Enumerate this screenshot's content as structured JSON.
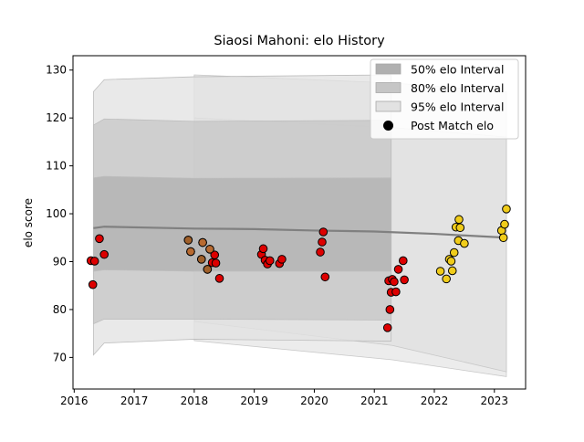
{
  "chart_data": {
    "type": "scatter",
    "title": "Siaosi Mahoni: elo History",
    "xlabel": "",
    "ylabel": "elo score",
    "xlim": [
      2015.98,
      2023.52
    ],
    "ylim": [
      63.4,
      133.0
    ],
    "x_ticks": [
      2016,
      2017,
      2018,
      2019,
      2020,
      2021,
      2022,
      2023
    ],
    "y_ticks": [
      70,
      80,
      90,
      100,
      110,
      120,
      130
    ],
    "grid": false,
    "legend_position": "top-right",
    "legend": [
      {
        "label": "50% elo Interval",
        "kind": "band",
        "color": "#b0b0b0"
      },
      {
        "label": "80% elo Interval",
        "kind": "band",
        "color": "#c6c6c6"
      },
      {
        "label": "95% elo Interval",
        "kind": "band",
        "color": "#e2e2e2"
      },
      {
        "label": "Post Match elo",
        "kind": "marker",
        "color": "#000000"
      }
    ],
    "bands": [
      {
        "level": "95%",
        "color": "#e2e2e2",
        "upper": [
          [
            2016.32,
            125.5
          ],
          [
            2016.5,
            128.0
          ],
          [
            2018.0,
            128.6
          ],
          [
            2021.28,
            129.0
          ]
        ],
        "lower": [
          [
            2016.32,
            70.5
          ],
          [
            2016.5,
            73.0
          ],
          [
            2018.0,
            73.8
          ],
          [
            2021.28,
            73.4
          ]
        ]
      },
      {
        "level": "80%",
        "color": "#c6c6c6",
        "upper": [
          [
            2016.32,
            118.5
          ],
          [
            2016.5,
            119.8
          ],
          [
            2018.0,
            119.3
          ],
          [
            2021.28,
            119.5
          ]
        ],
        "lower": [
          [
            2016.32,
            77.0
          ],
          [
            2016.5,
            78.0
          ],
          [
            2018.0,
            78.0
          ],
          [
            2021.28,
            77.8
          ]
        ]
      },
      {
        "level": "50%",
        "color": "#b0b0b0",
        "upper": [
          [
            2016.32,
            107.5
          ],
          [
            2016.5,
            107.8
          ],
          [
            2018.0,
            107.4
          ],
          [
            2021.28,
            107.5
          ]
        ],
        "lower": [
          [
            2016.32,
            88.0
          ],
          [
            2016.5,
            88.3
          ],
          [
            2018.0,
            88.0
          ],
          [
            2021.28,
            88.0
          ]
        ]
      }
    ],
    "faint_bands": [
      {
        "upper": [
          [
            2018.0,
            129.0
          ],
          [
            2021.3,
            127.3
          ],
          [
            2023.2,
            125.5
          ]
        ],
        "lower": [
          [
            2018.0,
            73.5
          ],
          [
            2021.3,
            69.5
          ],
          [
            2023.2,
            66.0
          ]
        ]
      },
      {
        "upper": [
          [
            2018.0,
            120.0
          ],
          [
            2021.3,
            118.0
          ],
          [
            2023.2,
            116.0
          ]
        ],
        "lower": [
          [
            2018.0,
            77.5
          ],
          [
            2021.3,
            72.5
          ],
          [
            2023.2,
            67.0
          ]
        ]
      }
    ],
    "mean_line": [
      [
        2016.32,
        97.0
      ],
      [
        2016.5,
        97.3
      ],
      [
        2018.0,
        96.9
      ],
      [
        2019.0,
        96.8
      ],
      [
        2020.0,
        96.5
      ],
      [
        2021.0,
        96.3
      ],
      [
        2022.0,
        95.8
      ],
      [
        2023.2,
        95.0
      ]
    ],
    "series": [
      {
        "name": "Post Match elo",
        "color": "#dd0000",
        "points": [
          [
            2016.28,
            90.2
          ],
          [
            2016.31,
            85.2
          ],
          [
            2016.34,
            90.1
          ],
          [
            2016.42,
            94.8
          ],
          [
            2016.5,
            91.5
          ],
          [
            2017.9,
            94.5
          ],
          [
            2017.94,
            92.1
          ],
          [
            2018.12,
            90.5
          ],
          [
            2018.14,
            94.0
          ],
          [
            2018.22,
            88.4
          ],
          [
            2018.26,
            92.6
          ],
          [
            2018.3,
            89.8
          ],
          [
            2018.34,
            91.4
          ],
          [
            2018.36,
            89.7
          ],
          [
            2018.42,
            86.5
          ],
          [
            2019.12,
            91.5
          ],
          [
            2019.15,
            92.7
          ],
          [
            2019.18,
            90.3
          ],
          [
            2019.22,
            89.5
          ],
          [
            2019.26,
            90.2
          ],
          [
            2019.42,
            89.6
          ],
          [
            2019.46,
            90.5
          ],
          [
            2020.1,
            92.0
          ],
          [
            2020.13,
            94.1
          ],
          [
            2020.15,
            96.2
          ],
          [
            2020.18,
            86.8
          ],
          [
            2021.22,
            76.2
          ],
          [
            2021.24,
            86.0
          ],
          [
            2021.26,
            80.0
          ],
          [
            2021.28,
            83.6
          ],
          [
            2021.3,
            86.3
          ],
          [
            2021.33,
            85.8
          ],
          [
            2021.36,
            83.7
          ],
          [
            2021.4,
            88.4
          ],
          [
            2021.48,
            90.2
          ],
          [
            2021.5,
            86.2
          ]
        ]
      },
      {
        "name": "Post Match elo",
        "color": "#f0cc1a",
        "points": [
          [
            2022.1,
            88.0
          ],
          [
            2022.2,
            86.4
          ],
          [
            2022.25,
            90.5
          ],
          [
            2022.28,
            90.1
          ],
          [
            2022.3,
            88.1
          ],
          [
            2022.33,
            91.9
          ],
          [
            2022.36,
            97.2
          ],
          [
            2022.4,
            94.4
          ],
          [
            2022.41,
            98.8
          ],
          [
            2022.43,
            97.1
          ],
          [
            2022.5,
            93.8
          ],
          [
            2023.12,
            96.5
          ],
          [
            2023.15,
            95.0
          ],
          [
            2023.17,
            97.8
          ],
          [
            2023.2,
            101.0
          ]
        ]
      }
    ],
    "transition_colors": [
      "#a0602a",
      "#b86a30"
    ],
    "transition_points": [
      [
        2017.9,
        94.5
      ],
      [
        2017.94,
        92.1
      ],
      [
        2018.12,
        90.5
      ],
      [
        2018.14,
        94.0
      ],
      [
        2018.22,
        88.4
      ],
      [
        2018.26,
        92.6
      ]
    ]
  }
}
